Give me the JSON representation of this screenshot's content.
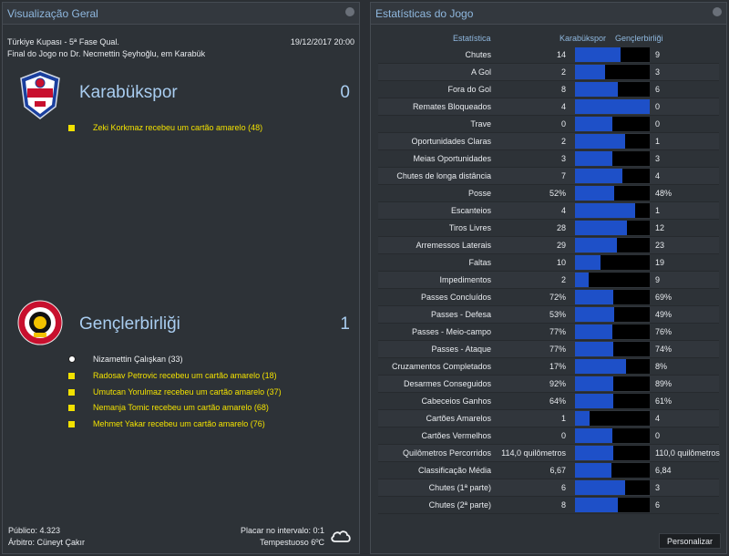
{
  "overview": {
    "title": "Visualização Geral",
    "competition": "Türkiye Kupası - 5ª Fase Qual.",
    "date": "19/12/2017 20:00",
    "venue": "Final do Jogo no Dr. Necmettin Şeyhoğlu, em Karabük",
    "home": {
      "name": "Karabükspor",
      "score": "0",
      "crest_text": "KARDEMİR KARABÜKSPOR 1969",
      "events": [
        {
          "type": "yellow-card",
          "text": "Zeki Korkmaz recebeu um cartão amarelo (48)"
        }
      ]
    },
    "away": {
      "name": "Gençlerbirliği",
      "score": "1",
      "crest_text": "ANKARA GENÇLERBİRLİĞİ SPOR KULÜBÜ 1923",
      "events": [
        {
          "type": "goal",
          "text": "Nizamettin Çalışkan (33)"
        },
        {
          "type": "yellow-card",
          "text": "Radosav Petrovic recebeu um cartão amarelo (18)"
        },
        {
          "type": "yellow-card",
          "text": "Umutcan Yorulmaz recebeu um cartão amarelo (37)"
        },
        {
          "type": "yellow-card",
          "text": "Nemanja Tomic recebeu um cartão amarelo (68)"
        },
        {
          "type": "yellow-card",
          "text": "Mehmet Yakar recebeu um cartão amarelo (76)"
        }
      ]
    },
    "attendance": "Público: 4.323",
    "referee": "Árbitro: Cüneyt Çakır",
    "half_time": "Placar no intervalo: 0:1",
    "weather": "Tempestuoso 6ºC",
    "weather_icon": "cloud-icon"
  },
  "stats": {
    "title": "Estatísticas do Jogo",
    "col_stat": "Estatística",
    "col_home": "Karabükspor",
    "col_away": "Gençlerbirliği",
    "personalize_label": "Personalizar",
    "home_color": "#1e50c8",
    "rows": [
      {
        "label": "Chutes",
        "home": "14",
        "away": "9",
        "home_share": 0.61
      },
      {
        "label": "A Gol",
        "home": "2",
        "away": "3",
        "home_share": 0.4
      },
      {
        "label": "Fora do Gol",
        "home": "8",
        "away": "6",
        "home_share": 0.57
      },
      {
        "label": "Remates Bloqueados",
        "home": "4",
        "away": "0",
        "home_share": 1.0
      },
      {
        "label": "Trave",
        "home": "0",
        "away": "0",
        "home_share": 0.5
      },
      {
        "label": "Oportunidades Claras",
        "home": "2",
        "away": "1",
        "home_share": 0.67
      },
      {
        "label": "Meias Oportunidades",
        "home": "3",
        "away": "3",
        "home_share": 0.5
      },
      {
        "label": "Chutes de longa distância",
        "home": "7",
        "away": "4",
        "home_share": 0.64
      },
      {
        "label": "Posse",
        "home": "52%",
        "away": "48%",
        "home_share": 0.52
      },
      {
        "label": "Escanteios",
        "home": "4",
        "away": "1",
        "home_share": 0.8
      },
      {
        "label": "Tiros Livres",
        "home": "28",
        "away": "12",
        "home_share": 0.7
      },
      {
        "label": "Arremessos Laterais",
        "home": "29",
        "away": "23",
        "home_share": 0.56
      },
      {
        "label": "Faltas",
        "home": "10",
        "away": "19",
        "home_share": 0.34
      },
      {
        "label": "Impedimentos",
        "home": "2",
        "away": "9",
        "home_share": 0.18
      },
      {
        "label": "Passes Concluídos",
        "home": "72%",
        "away": "69%",
        "home_share": 0.51
      },
      {
        "label": "Passes - Defesa",
        "home": "53%",
        "away": "49%",
        "home_share": 0.52
      },
      {
        "label": "Passes - Meio-campo",
        "home": "77%",
        "away": "76%",
        "home_share": 0.5
      },
      {
        "label": "Passes - Ataque",
        "home": "77%",
        "away": "74%",
        "home_share": 0.51
      },
      {
        "label": "Cruzamentos Completados",
        "home": "17%",
        "away": "8%",
        "home_share": 0.68
      },
      {
        "label": "Desarmes Conseguidos",
        "home": "92%",
        "away": "89%",
        "home_share": 0.51
      },
      {
        "label": "Cabeceios Ganhos",
        "home": "64%",
        "away": "61%",
        "home_share": 0.51
      },
      {
        "label": "Cartões Amarelos",
        "home": "1",
        "away": "4",
        "home_share": 0.2
      },
      {
        "label": "Cartões Vermelhos",
        "home": "0",
        "away": "0",
        "home_share": 0.5
      },
      {
        "label": "Quilômetros Percorridos",
        "home": "114,0 quilômetros",
        "away": "110,0 quilômetros",
        "home_share": 0.51
      },
      {
        "label": "Classificação Média",
        "home": "6,67",
        "away": "6,84",
        "home_share": 0.49
      },
      {
        "label": "Chutes (1ª parte)",
        "home": "6",
        "away": "3",
        "home_share": 0.67
      },
      {
        "label": "Chutes (2ª parte)",
        "home": "8",
        "away": "6",
        "home_share": 0.57
      }
    ]
  }
}
